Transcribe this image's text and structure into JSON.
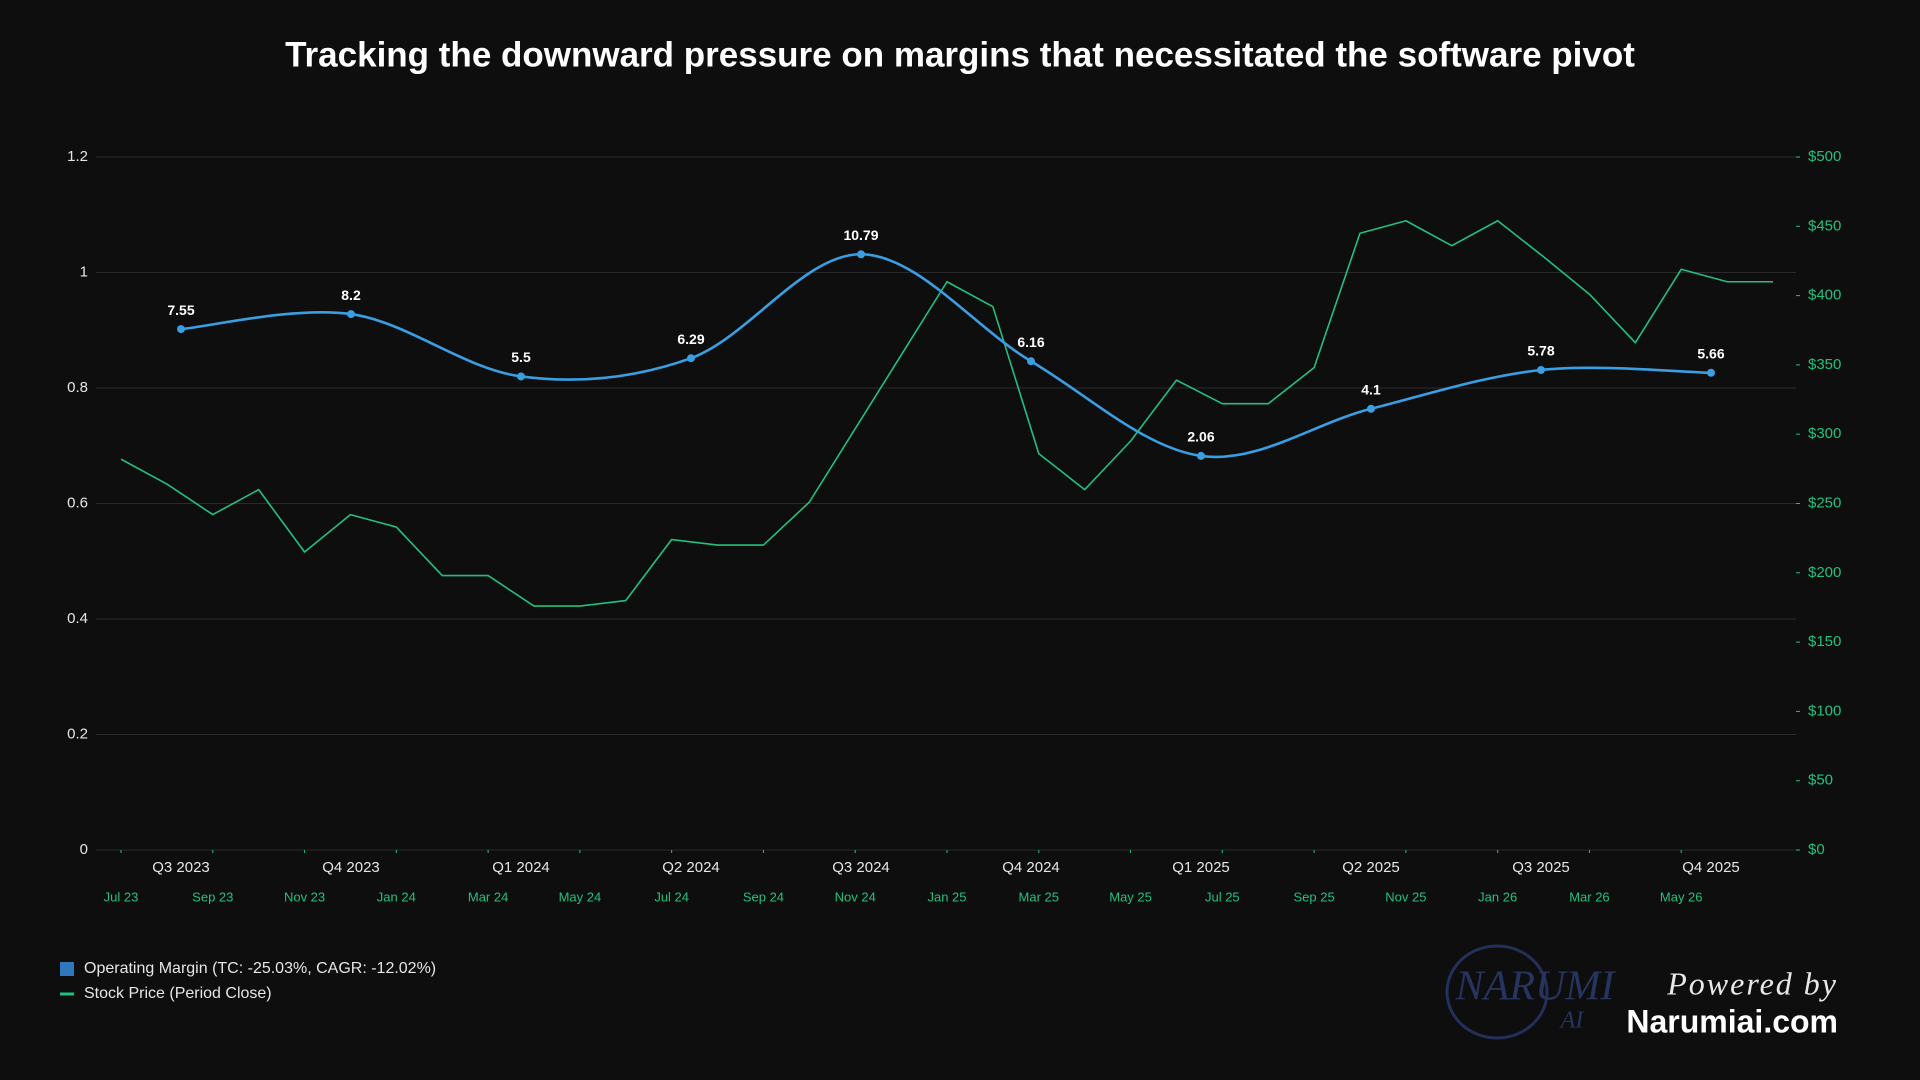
{
  "chart_data": {
    "type": "line",
    "title": "Tracking the downward pressure on margins that necessitated the software pivot",
    "categories": [
      "Q3 2023",
      "Q4 2023",
      "Q1 2024",
      "Q2 2024",
      "Q3 2024",
      "Q4 2024",
      "Q1 2025",
      "Q2 2025",
      "Q3 2025",
      "Q4 2025"
    ],
    "ylim": [
      0,
      1.2
    ],
    "yticks": [
      0,
      0.2,
      0.4,
      0.6,
      0.8,
      1,
      1.2
    ],
    "y2lim": [
      0,
      500
    ],
    "y2ticks": [
      {
        "value": 0,
        "label": "$0"
      },
      {
        "value": 50,
        "label": "$50"
      },
      {
        "value": 100,
        "label": "$100"
      },
      {
        "value": 150,
        "label": "$150"
      },
      {
        "value": 200,
        "label": "$200"
      },
      {
        "value": 250,
        "label": "$250"
      },
      {
        "value": 300,
        "label": "$300"
      },
      {
        "value": 350,
        "label": "$350"
      },
      {
        "value": 400,
        "label": "$400"
      },
      {
        "value": 450,
        "label": "$450"
      },
      {
        "value": 500,
        "label": "$500"
      }
    ],
    "y3lim": [
      -15,
      15
    ],
    "xlim": [
      "2023-07",
      "2026-07"
    ],
    "xticks": [
      {
        "value": "2023-07",
        "label": "Jul 23"
      },
      {
        "value": "2023-09",
        "label": "Sep 23"
      },
      {
        "value": "2023-11",
        "label": "Nov 23"
      },
      {
        "value": "2024-01",
        "label": "Jan 24"
      },
      {
        "value": "2024-03",
        "label": "Mar 24"
      },
      {
        "value": "2024-05",
        "label": "May 24"
      },
      {
        "value": "2024-07",
        "label": "Jul 24"
      },
      {
        "value": "2024-09",
        "label": "Sep 24"
      },
      {
        "value": "2024-11",
        "label": "Nov 24"
      },
      {
        "value": "2025-01",
        "label": "Jan 25"
      },
      {
        "value": "2025-03",
        "label": "Mar 25"
      },
      {
        "value": "2025-05",
        "label": "May 25"
      },
      {
        "value": "2025-07",
        "label": "Jul 25"
      },
      {
        "value": "2025-09",
        "label": "Sep 25"
      },
      {
        "value": "2025-11",
        "label": "Nov 25"
      },
      {
        "value": "2026-01",
        "label": "Jan 26"
      },
      {
        "value": "2026-03",
        "label": "Mar 26"
      },
      {
        "value": "2026-05",
        "label": "May 26"
      }
    ],
    "grid": true,
    "series": [
      {
        "name": "Operating Margin (TC: -25.03%, CAGR: -12.02%)",
        "color": "#3a9fe2",
        "legend_color": "#2f78bd",
        "axis": "y3",
        "values": [
          7.55,
          8.2,
          5.5,
          6.29,
          10.79,
          6.16,
          2.06,
          4.1,
          5.78,
          5.66
        ]
      },
      {
        "name": "Stock Price (Period Close)",
        "color": "#22c07f",
        "axis": "y2",
        "x": [
          "2023-07",
          "2023-08",
          "2023-09",
          "2023-10",
          "2023-11",
          "2023-12",
          "2024-01",
          "2024-02",
          "2024-03",
          "2024-04",
          "2024-05",
          "2024-06",
          "2024-07",
          "2024-08",
          "2024-09",
          "2024-10",
          "2024-11",
          "2024-12",
          "2025-01",
          "2025-02",
          "2025-03",
          "2025-04",
          "2025-05",
          "2025-06",
          "2025-07",
          "2025-08",
          "2025-09",
          "2025-10",
          "2025-11",
          "2025-12",
          "2026-01",
          "2026-02",
          "2026-03",
          "2026-04",
          "2026-05",
          "2026-06",
          "2026-07"
        ],
        "values": [
          282,
          264,
          242,
          260,
          215,
          242,
          233,
          198,
          198,
          176,
          176,
          180,
          224,
          220,
          220,
          251,
          304,
          357,
          410,
          392,
          286,
          260,
          295,
          339,
          322,
          322,
          348,
          445,
          454,
          436,
          454,
          428,
          401,
          366,
          419,
          410,
          410
        ]
      }
    ]
  },
  "branding": {
    "logo": "NARUMI",
    "logo_sub": "AI",
    "powered": "Powered by",
    "site": "Narumiai.com"
  }
}
